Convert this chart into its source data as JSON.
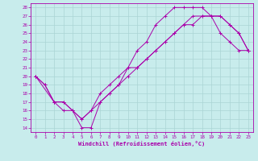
{
  "xlabel": "Windchill (Refroidissement éolien,°C)",
  "xlim": [
    -0.5,
    23.5
  ],
  "ylim": [
    13.5,
    28.5
  ],
  "xticks": [
    0,
    1,
    2,
    3,
    4,
    5,
    6,
    7,
    8,
    9,
    10,
    11,
    12,
    13,
    14,
    15,
    16,
    17,
    18,
    19,
    20,
    21,
    22,
    23
  ],
  "yticks": [
    14,
    15,
    16,
    17,
    18,
    19,
    20,
    21,
    22,
    23,
    24,
    25,
    26,
    27,
    28
  ],
  "background_color": "#c8ecec",
  "grid_color": "#aad4d4",
  "line_color": "#aa00aa",
  "series": [
    {
      "x": [
        0,
        1,
        2,
        3,
        4,
        5,
        6,
        7,
        8,
        9,
        10,
        11,
        12,
        13,
        14,
        15,
        16,
        17,
        18,
        19,
        20,
        21,
        22,
        23
      ],
      "y": [
        20,
        19,
        17,
        16,
        16,
        14,
        14,
        17,
        18,
        19,
        21,
        23,
        24,
        26,
        27,
        28,
        28,
        28,
        28,
        27,
        25,
        24,
        23,
        23
      ]
    },
    {
      "x": [
        0,
        1,
        2,
        3,
        5,
        6,
        7,
        8,
        9,
        10,
        11,
        12,
        13,
        14,
        15,
        16,
        17,
        18,
        19,
        20,
        21,
        22,
        23
      ],
      "y": [
        20,
        19,
        17,
        17,
        15,
        16,
        18,
        19,
        20,
        21,
        21,
        22,
        23,
        24,
        25,
        26,
        26,
        27,
        27,
        27,
        26,
        25,
        23
      ]
    },
    {
      "x": [
        0,
        2,
        3,
        4,
        5,
        6,
        7,
        8,
        9,
        10,
        11,
        12,
        13,
        14,
        15,
        16,
        17,
        18,
        19,
        20,
        21,
        22,
        23
      ],
      "y": [
        20,
        17,
        17,
        16,
        15,
        16,
        17,
        18,
        19,
        20,
        21,
        22,
        23,
        24,
        25,
        26,
        27,
        27,
        27,
        27,
        26,
        25,
        23
      ]
    }
  ]
}
